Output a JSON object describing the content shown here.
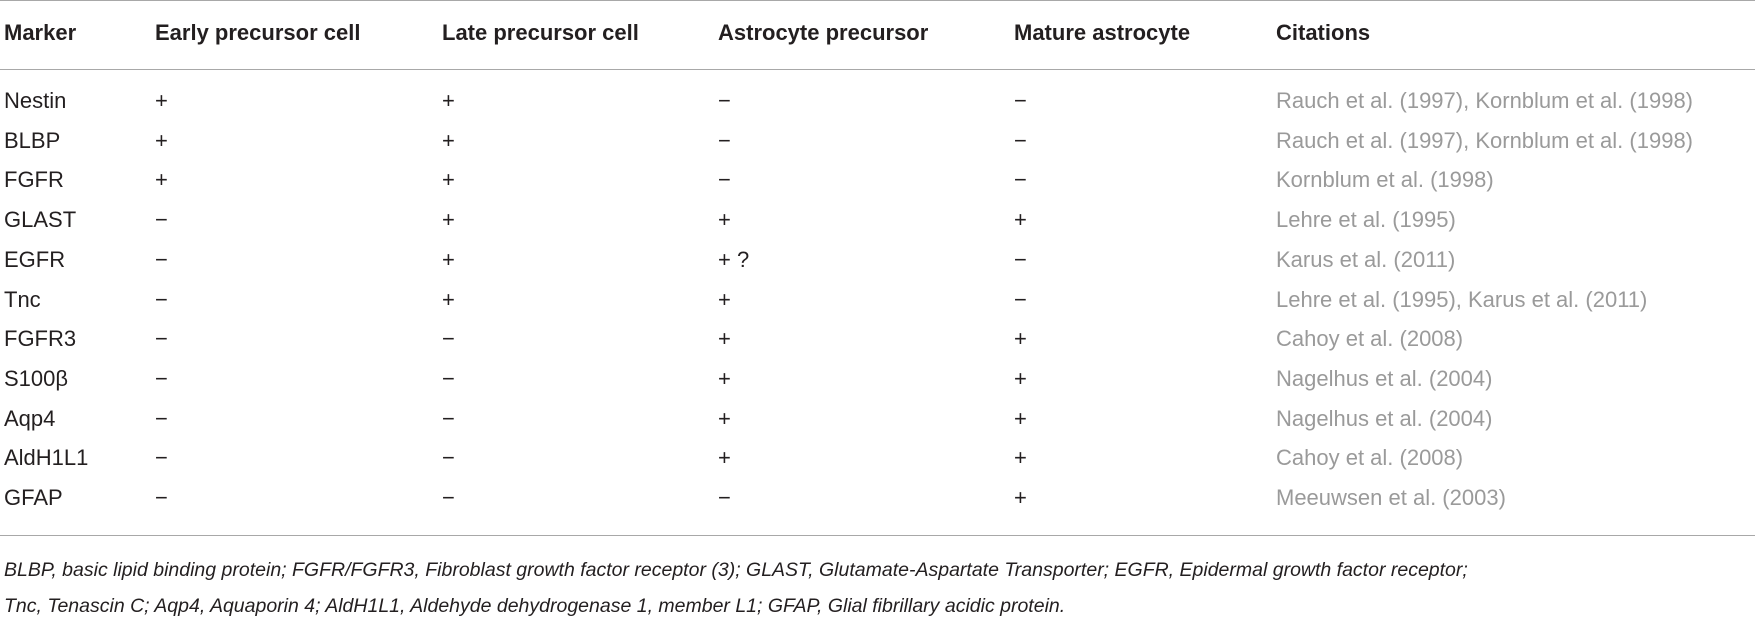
{
  "table": {
    "header": [
      "Marker",
      "Early precursor cell",
      "Late precursor cell",
      "Astrocyte precursor",
      "Mature astrocyte",
      "Citations"
    ],
    "rows": [
      [
        "Nestin",
        "+",
        "+",
        "−",
        "−",
        "Rauch et al. (1997), Kornblum et al. (1998)"
      ],
      [
        "BLBP",
        "+",
        "+",
        "−",
        "−",
        "Rauch et al. (1997), Kornblum et al. (1998)"
      ],
      [
        "FGFR",
        "+",
        "+",
        "−",
        "−",
        "Kornblum et al. (1998)"
      ],
      [
        "GLAST",
        "−",
        "+",
        "+",
        "+",
        "Lehre et al. (1995)"
      ],
      [
        "EGFR",
        "−",
        "+",
        "+ ?",
        "−",
        "Karus et al. (2011)"
      ],
      [
        "Tnc",
        "−",
        "+",
        "+",
        "−",
        "Lehre et al. (1995), Karus et al. (2011)"
      ],
      [
        "FGFR3",
        "−",
        "−",
        "+",
        "+",
        "Cahoy et al. (2008)"
      ],
      [
        "S100β",
        "−",
        "−",
        "+",
        "+",
        "Nagelhus et al. (2004)"
      ],
      [
        "Aqp4",
        "−",
        "−",
        "+",
        "+",
        "Nagelhus et al. (2004)"
      ],
      [
        "AldH1L1",
        "−",
        "−",
        "+",
        "+",
        "Cahoy et al. (2008)"
      ],
      [
        "GFAP",
        "−",
        "−",
        "−",
        "+",
        "Meeuwsen et al. (2003)"
      ]
    ],
    "footnote": [
      "BLBP, basic lipid binding protein; FGFR/FGFR3, Fibroblast growth factor receptor (3); GLAST, Glutamate-Aspartate Transporter; EGFR, Epidermal growth factor receptor;",
      "Tnc, Tenascin C; Aqp4, Aquaporin 4; AldH1L1, Aldehyde dehydrogenase 1, member L1; GFAP, Glial fibrillary acidic protein."
    ]
  }
}
